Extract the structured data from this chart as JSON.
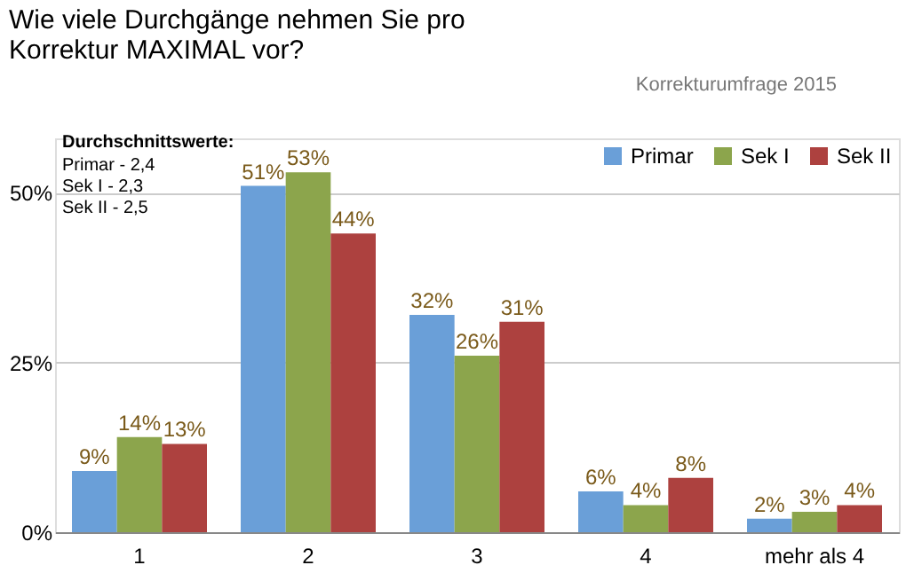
{
  "chart_data": {
    "type": "bar",
    "title": "Wie viele Durchgänge nehmen Sie pro Korrektur MAXIMAL vor?",
    "categories": [
      "1",
      "2",
      "3",
      "4",
      "mehr als 4"
    ],
    "series": [
      {
        "name": "Primar",
        "color": "#6a9fd8",
        "values": [
          9,
          51,
          32,
          6,
          2
        ],
        "value_labels": [
          "9%",
          "51%",
          "32%",
          "6%",
          "2%"
        ]
      },
      {
        "name": "Sek I",
        "color": "#8ca54c",
        "values": [
          14,
          53,
          26,
          4,
          3
        ],
        "value_labels": [
          "14%",
          "53%",
          "26%",
          "4%",
          "3%"
        ]
      },
      {
        "name": "Sek II",
        "color": "#ad413f",
        "values": [
          13,
          44,
          31,
          8,
          4
        ],
        "value_labels": [
          "13%",
          "44%",
          "31%",
          "8%",
          "4%"
        ]
      }
    ],
    "ylim": [
      0,
      58
    ],
    "yticks": [
      {
        "value": 0,
        "label": "0%"
      },
      {
        "value": 25,
        "label": "25%"
      },
      {
        "value": 50,
        "label": "50%"
      }
    ],
    "grid": "y",
    "legend": "top right",
    "annotations": [
      "Korrekturumfrage 2015",
      "Durchschnittswerte:",
      "Primar - 2,4",
      "Sek I - 2,3",
      "Sek II - 2,5"
    ]
  }
}
